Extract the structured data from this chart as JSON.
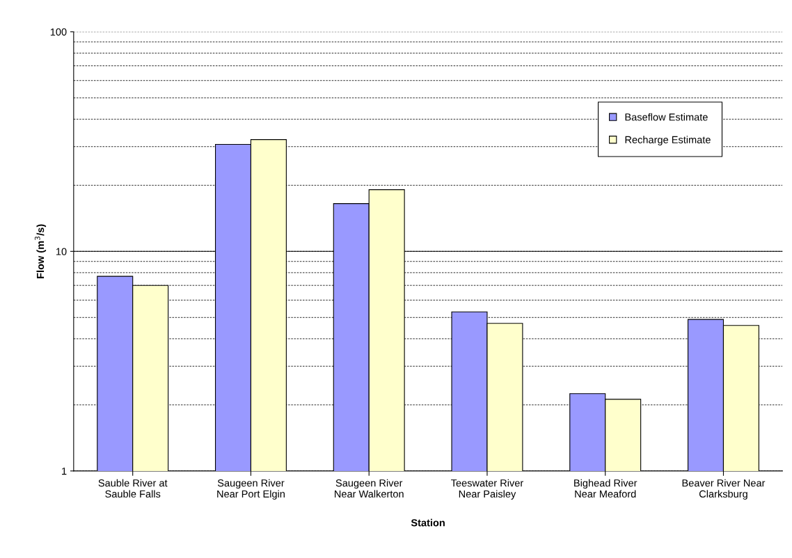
{
  "chart_data": {
    "type": "bar",
    "xlabel": "Station",
    "ylabel": "Flow (m$^{3}$/s)",
    "categories": [
      "Sauble River at\nSauble Falls",
      "Saugeen River\nNear Port Elgin",
      "Saugeen River\nNear Walkerton",
      "Teeswater River\nNear Paisley",
      "Bighead River\nNear Meaford",
      "Beaver River Near\nClarksburg"
    ],
    "series": [
      {
        "name": "Baseflow Estimate",
        "color": "#9999ff",
        "values": [
          7.7,
          30.7,
          16.5,
          5.3,
          2.25,
          4.9
        ]
      },
      {
        "name": "Recharge Estimate",
        "color": "#ffffcc",
        "values": [
          7.0,
          32.3,
          19.1,
          4.7,
          2.12,
          4.6
        ]
      }
    ],
    "log": true,
    "ylim": [
      1,
      100
    ],
    "yticks": [
      1,
      {
        "value": 2,
        "label": null
      },
      {
        "value": 3,
        "label": null
      },
      {
        "value": 4,
        "label": null
      },
      {
        "value": 5,
        "label": null
      },
      {
        "value": 6,
        "label": null
      },
      {
        "value": 7,
        "label": null
      },
      {
        "value": 8,
        "label": null
      },
      {
        "value": 9,
        "label": null
      },
      10,
      {
        "value": 20,
        "label": null
      },
      {
        "value": 30,
        "label": null
      },
      {
        "value": 40,
        "label": null
      },
      {
        "value": 50,
        "label": null
      },
      {
        "value": 60,
        "label": null
      },
      {
        "value": 70,
        "label": null
      },
      {
        "value": 80,
        "label": null
      },
      {
        "value": 90,
        "label": null
      },
      100
    ],
    "ref_lines": [
      {
        "axis": "y",
        "value": 10,
        "color": "#000000",
        "line_style": "solid"
      }
    ],
    "grid": "y",
    "legend": "top right"
  }
}
